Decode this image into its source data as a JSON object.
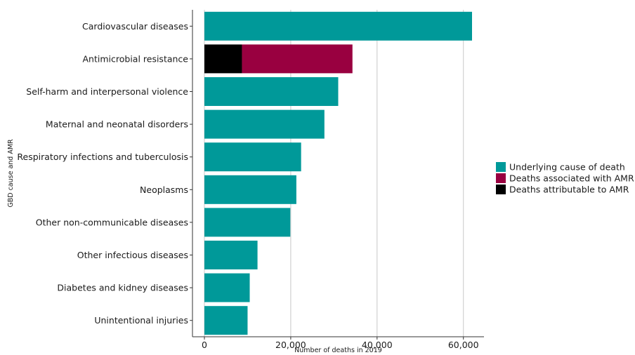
{
  "chart_data": {
    "type": "bar",
    "orientation": "horizontal",
    "stacked": true,
    "xlabel": "Number of deaths in 2019",
    "ylabel": "GBD cause and AMR",
    "xlim": [
      0,
      65000
    ],
    "xticks": [
      0,
      20000,
      40000,
      60000
    ],
    "xtick_labels": [
      "0",
      "20,000",
      "40,000",
      "60,000"
    ],
    "grid": "vertical major lines",
    "legend_position": "right",
    "categories": [
      "Cardiovascular diseases",
      "Antimicrobial resistance",
      "Self-harm and interpersonal violence",
      "Maternal and neonatal disorders",
      "Respiratory infections and tuberculosis",
      "Neoplasms",
      "Other non-communicable diseases",
      "Other infectious diseases",
      "Diabetes and kidney diseases",
      "Unintentional injuries"
    ],
    "series": [
      {
        "name": "Underlying cause of death",
        "color": "#009999",
        "values": [
          62000,
          0,
          31000,
          27800,
          22400,
          21300,
          19900,
          12300,
          10500,
          10000
        ]
      },
      {
        "name": "Deaths associated with AMR",
        "color": "#990040",
        "values": [
          0,
          25600,
          0,
          0,
          0,
          0,
          0,
          0,
          0,
          0
        ]
      },
      {
        "name": "Deaths attributable to AMR",
        "color": "#000000",
        "values": [
          0,
          8700,
          0,
          0,
          0,
          0,
          0,
          0,
          0,
          0
        ]
      }
    ],
    "stack_note": "Antimicrobial resistance bar: attributable segment starts at 0, associated segment follows (total 34,300)"
  }
}
